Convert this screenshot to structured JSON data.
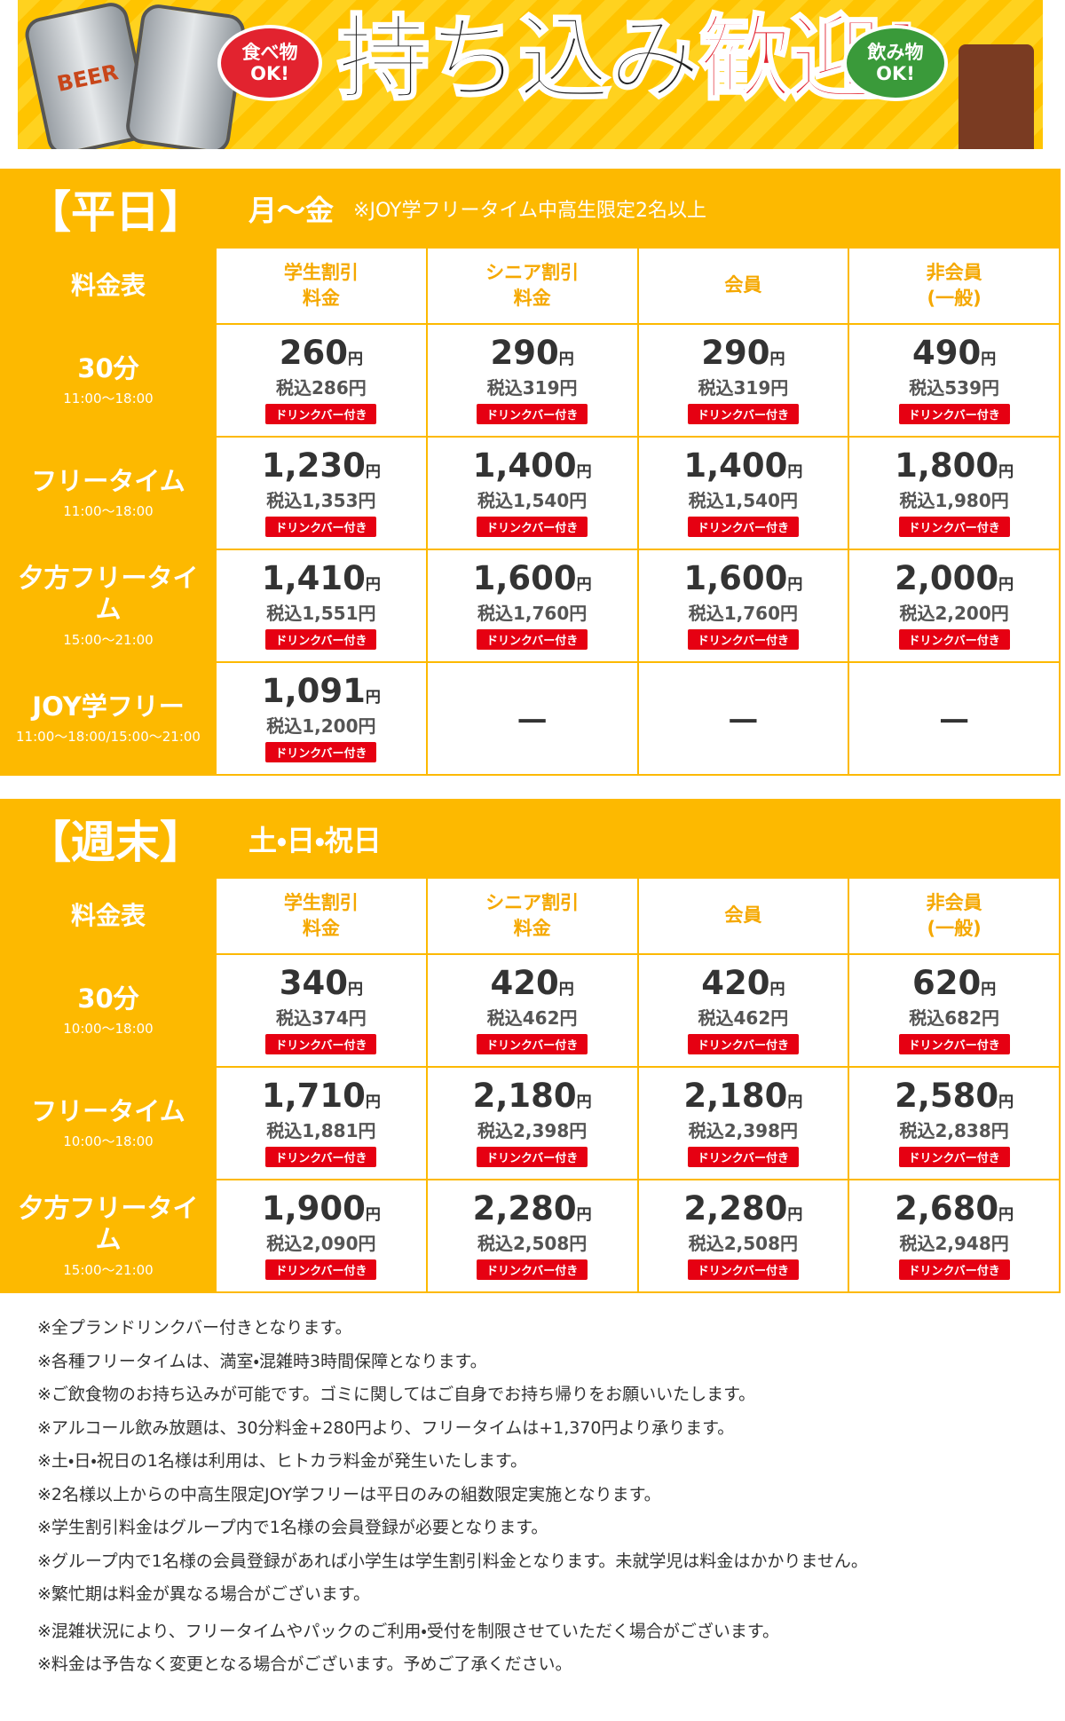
{
  "banner": {
    "can_label": "BEER",
    "left_bubble": "食べ物\nOK!",
    "title_black": "持ち込み",
    "title_red": "歓迎!",
    "right_bubble": "飲み物\nOK!"
  },
  "sections": [
    {
      "title": "【平日】",
      "subtitle": "月〜金",
      "note": "※JOY学フリータイム中高生限定2名以上",
      "header": [
        "料金表",
        "学生割引\n料金",
        "シニア割引\n料金",
        "会員",
        "非会員\n(一般)"
      ],
      "rows": [
        {
          "name": "30分",
          "time": "11:00〜18:00",
          "cells": [
            {
              "price": "260",
              "unit": "円",
              "tax": "税込286円",
              "badge": "ドリンクバー付き"
            },
            {
              "price": "290",
              "unit": "円",
              "tax": "税込319円",
              "badge": "ドリンクバー付き"
            },
            {
              "price": "290",
              "unit": "円",
              "tax": "税込319円",
              "badge": "ドリンクバー付き"
            },
            {
              "price": "490",
              "unit": "円",
              "tax": "税込539円",
              "badge": "ドリンクバー付き"
            }
          ]
        },
        {
          "name": "フリータイム",
          "time": "11:00〜18:00",
          "cells": [
            {
              "price": "1,230",
              "unit": "円",
              "tax": "税込1,353円",
              "badge": "ドリンクバー付き"
            },
            {
              "price": "1,400",
              "unit": "円",
              "tax": "税込1,540円",
              "badge": "ドリンクバー付き"
            },
            {
              "price": "1,400",
              "unit": "円",
              "tax": "税込1,540円",
              "badge": "ドリンクバー付き"
            },
            {
              "price": "1,800",
              "unit": "円",
              "tax": "税込1,980円",
              "badge": "ドリンクバー付き"
            }
          ]
        },
        {
          "name": "夕方フリータイム",
          "time": "15:00〜21:00",
          "cells": [
            {
              "price": "1,410",
              "unit": "円",
              "tax": "税込1,551円",
              "badge": "ドリンクバー付き"
            },
            {
              "price": "1,600",
              "unit": "円",
              "tax": "税込1,760円",
              "badge": "ドリンクバー付き"
            },
            {
              "price": "1,600",
              "unit": "円",
              "tax": "税込1,760円",
              "badge": "ドリンクバー付き"
            },
            {
              "price": "2,000",
              "unit": "円",
              "tax": "税込2,200円",
              "badge": "ドリンクバー付き"
            }
          ]
        },
        {
          "name": "JOY学フリー",
          "time": "11:00〜18:00/15:00〜21:00",
          "cells": [
            {
              "price": "1,091",
              "unit": "円",
              "tax": "税込1,200円",
              "badge": "ドリンクバー付き"
            },
            {
              "dash": "－"
            },
            {
              "dash": "－"
            },
            {
              "dash": "－"
            }
          ]
        }
      ]
    },
    {
      "title": "【週末】",
      "subtitle": "土・日・祝日",
      "header": [
        "料金表",
        "学生割引\n料金",
        "シニア割引\n料金",
        "会員",
        "非会員\n(一般)"
      ],
      "rows": [
        {
          "name": "30分",
          "time": "10:00〜18:00",
          "cells": [
            {
              "price": "340",
              "unit": "円",
              "tax": "税込374円",
              "badge": "ドリンクバー付き"
            },
            {
              "price": "420",
              "unit": "円",
              "tax": "税込462円",
              "badge": "ドリンクバー付き"
            },
            {
              "price": "420",
              "unit": "円",
              "tax": "税込462円",
              "badge": "ドリンクバー付き"
            },
            {
              "price": "620",
              "unit": "円",
              "tax": "税込682円",
              "badge": "ドリンクバー付き"
            }
          ]
        },
        {
          "name": "フリータイム",
          "time": "10:00〜18:00",
          "cells": [
            {
              "price": "1,710",
              "unit": "円",
              "tax": "税込1,881円",
              "badge": "ドリンクバー付き"
            },
            {
              "price": "2,180",
              "unit": "円",
              "tax": "税込2,398円",
              "badge": "ドリンクバー付き"
            },
            {
              "price": "2,180",
              "unit": "円",
              "tax": "税込2,398円",
              "badge": "ドリンクバー付き"
            },
            {
              "price": "2,580",
              "unit": "円",
              "tax": "税込2,838円",
              "badge": "ドリンクバー付き"
            }
          ]
        },
        {
          "name": "夕方フリータイム",
          "time": "15:00〜21:00",
          "cells": [
            {
              "price": "1,900",
              "unit": "円",
              "tax": "税込2,090円",
              "badge": "ドリンクバー付き"
            },
            {
              "price": "2,280",
              "unit": "円",
              "tax": "税込2,508円",
              "badge": "ドリンクバー付き"
            },
            {
              "price": "2,280",
              "unit": "円",
              "tax": "税込2,508円",
              "badge": "ドリンクバー付き"
            },
            {
              "price": "2,680",
              "unit": "円",
              "tax": "税込2,948円",
              "badge": "ドリンクバー付き"
            }
          ]
        }
      ]
    }
  ],
  "notes": [
    "※全プランドリンクバー付きとなります。",
    "※各種フリータイムは、満室・混雑時3時間保障となります。",
    "※ご飲食物のお持ち込みが可能です。ゴミに関してはご自身でお持ち帰りをお願いいたします。",
    "※アルコール飲み放題は、30分料金+280円より、フリータイムは+1,370円より承ります。",
    "※土・日・祝日の1名様は利用は、ヒトカラ料金が発生いたします。",
    "※2名様以上からの中高生限定JOY学フリーは平日のみの組数限定実施となります。",
    "※学生割引料金はグループ内で1名様の会員登録が必要となります。",
    "※グループ内で1名様の会員登録があれば小学生は学生割引料金となります。未就学児は料金はかかりません。",
    "※繁忙期は料金が異なる場合がございます。",
    "※混雑状況により、フリータイムやパックのご利用・受付を制限させていただく場合がございます。",
    "※料金は予告なく変更となる場合がございます。予めご了承ください。"
  ]
}
